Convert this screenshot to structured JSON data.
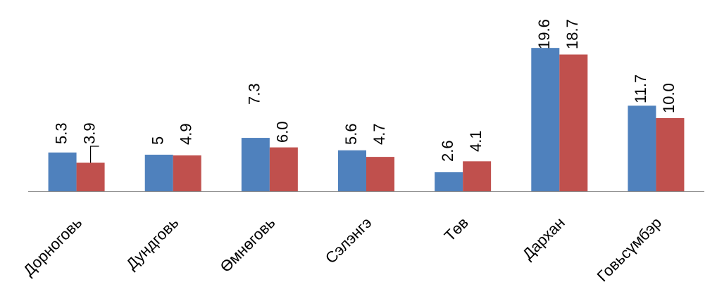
{
  "chart_data": {
    "type": "bar",
    "categories": [
      "Дорноговь",
      "Дундговь",
      "Өмнөговь",
      "Сэлэнгэ",
      "Төв",
      "Дархан",
      "Говьсүмбэр"
    ],
    "series": [
      {
        "values": [
          5.3,
          5,
          7.3,
          5.6,
          2.6,
          19.6,
          11.7
        ],
        "labels": [
          "5.3",
          "5",
          "7.3",
          "5.6",
          "2.6",
          "19.6",
          "11.7"
        ],
        "color": "#4F81BD"
      },
      {
        "values": [
          3.9,
          4.9,
          6.0,
          4.7,
          4.1,
          18.7,
          10.0
        ],
        "labels": [
          "3.9",
          "4.9",
          "6.0",
          "4.7",
          "4.1",
          "18.7",
          "10.0"
        ],
        "color": "#C0504D"
      }
    ],
    "ylim": [
      0,
      20
    ],
    "grid": false,
    "legend": "none"
  }
}
